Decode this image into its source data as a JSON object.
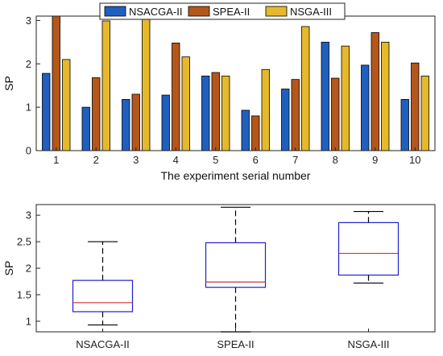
{
  "chart_data": [
    {
      "type": "bar",
      "categories": [
        "1",
        "2",
        "3",
        "4",
        "5",
        "6",
        "7",
        "8",
        "9",
        "10"
      ],
      "series": [
        {
          "name": "NSACGA-II",
          "color": "#1f5fbf",
          "values": [
            1.78,
            1.0,
            1.18,
            1.28,
            1.72,
            0.93,
            1.42,
            2.5,
            1.97,
            1.18
          ]
        },
        {
          "name": "SPEA-II",
          "color": "#b5561b",
          "values": [
            3.15,
            1.68,
            1.3,
            2.48,
            1.8,
            0.8,
            1.64,
            1.67,
            2.72,
            2.02
          ]
        },
        {
          "name": "NSGA-III",
          "color": "#e6b82c",
          "values": [
            2.1,
            2.99,
            3.07,
            2.16,
            1.72,
            1.87,
            2.86,
            2.41,
            2.5,
            1.72
          ]
        }
      ],
      "xlabel": "The experiment serial number",
      "ylabel": "SP",
      "ylim": [
        0,
        3.1
      ],
      "yticks": [
        "0",
        "1",
        "2",
        "3"
      ],
      "legend_position": "top",
      "grid": false
    },
    {
      "type": "box",
      "categories": [
        "NSACGA-II",
        "SPEA-II",
        "NSGA-III"
      ],
      "boxes": [
        {
          "min": 0.93,
          "q1": 1.18,
          "median": 1.35,
          "q3": 1.77,
          "max": 2.5
        },
        {
          "min": 0.8,
          "q1": 1.64,
          "median": 1.74,
          "q3": 2.48,
          "max": 3.15
        },
        {
          "min": 1.72,
          "q1": 1.87,
          "median": 2.28,
          "q3": 2.86,
          "max": 3.07
        }
      ],
      "ylabel": "SP",
      "ylim": [
        0.8,
        3.2
      ],
      "yticks": [
        "1",
        "1.5",
        "2",
        "2.5",
        "3"
      ],
      "box_color": "#1f1fcf",
      "median_color": "#cc3333",
      "whisker_color": "#000000"
    }
  ]
}
